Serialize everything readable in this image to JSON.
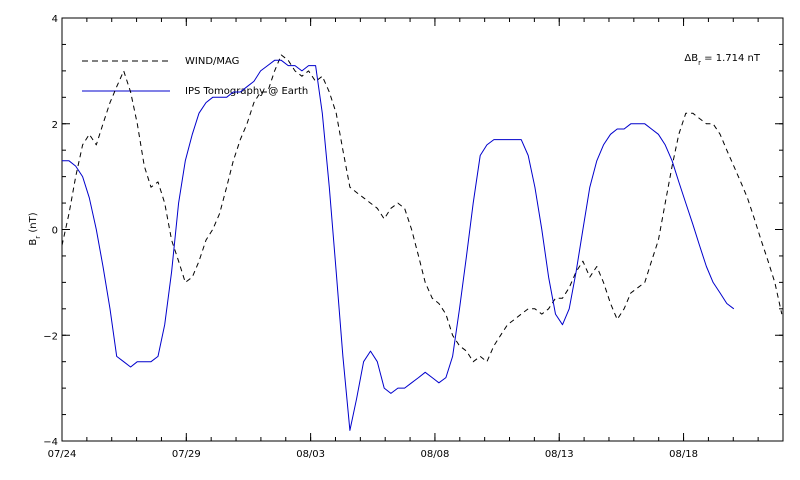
{
  "chart_data": {
    "type": "line",
    "title": "",
    "xlabel": "",
    "ylabel": "Br (nT)",
    "ylabel_main": "B",
    "ylabel_sub": "r",
    "ylabel_unit": " (nT)",
    "xlim": [
      0,
      29
    ],
    "ylim": [
      -4,
      4
    ],
    "x_ticks": [
      {
        "value": 0,
        "label": "07/24"
      },
      {
        "value": 5,
        "label": "07/29"
      },
      {
        "value": 10,
        "label": "08/03"
      },
      {
        "value": 15,
        "label": "08/08"
      },
      {
        "value": 20,
        "label": "08/13"
      },
      {
        "value": 25,
        "label": "08/18"
      }
    ],
    "y_ticks": [
      {
        "value": -4,
        "label": "−4"
      },
      {
        "value": -2,
        "label": "−2"
      },
      {
        "value": 0,
        "label": "0"
      },
      {
        "value": 2,
        "label": "2"
      },
      {
        "value": 4,
        "label": "4"
      }
    ],
    "annotation": "ΔBr = 1.714 nT",
    "annotation_parts": {
      "delta": "ΔB",
      "sub": "r",
      "rest": " = 1.714 nT"
    },
    "legend_position": "top-left",
    "grid": false,
    "series": [
      {
        "name": "WIND/MAG",
        "style": "dashed",
        "color": "#000000",
        "x": [
          0.0,
          0.28,
          0.55,
          0.83,
          1.1,
          1.38,
          1.65,
          1.93,
          2.2,
          2.48,
          2.76,
          3.03,
          3.31,
          3.58,
          3.86,
          4.13,
          4.41,
          4.69,
          4.96,
          5.24,
          5.51,
          5.79,
          6.06,
          6.34,
          6.62,
          6.89,
          7.17,
          7.44,
          7.72,
          7.99,
          8.27,
          8.55,
          8.82,
          9.1,
          9.37,
          9.65,
          9.92,
          10.2,
          10.47,
          10.75,
          11.03,
          11.3,
          11.58,
          11.85,
          12.13,
          12.41,
          12.68,
          12.96,
          13.23,
          13.51,
          13.78,
          14.06,
          14.34,
          14.61,
          14.89,
          15.16,
          15.44,
          15.71,
          15.99,
          16.27,
          16.54,
          16.82,
          17.09,
          17.37,
          17.64,
          17.92,
          18.2,
          18.47,
          18.75,
          19.02,
          19.3,
          19.57,
          19.85,
          20.13,
          20.4,
          20.68,
          20.95,
          21.23,
          21.51,
          21.78,
          22.06,
          22.33,
          22.61,
          22.88,
          23.16,
          23.44,
          23.71,
          23.99,
          24.26,
          24.54,
          24.81,
          25.09,
          25.37,
          25.64,
          25.92,
          26.19,
          26.47,
          26.74,
          27.02,
          27.3,
          27.57,
          27.85,
          28.12,
          28.4,
          28.67,
          28.95
        ],
        "values": [
          -0.3,
          0.3,
          1.0,
          1.6,
          1.8,
          1.6,
          2.0,
          2.4,
          2.7,
          3.0,
          2.6,
          2.0,
          1.2,
          0.8,
          0.9,
          0.5,
          -0.2,
          -0.6,
          -1.0,
          -0.9,
          -0.6,
          -0.2,
          0.0,
          0.3,
          0.8,
          1.3,
          1.7,
          2.0,
          2.4,
          2.6,
          2.6,
          3.0,
          3.3,
          3.2,
          3.0,
          2.9,
          3.0,
          2.8,
          2.9,
          2.6,
          2.2,
          1.5,
          0.8,
          0.7,
          0.6,
          0.5,
          0.4,
          0.2,
          0.4,
          0.5,
          0.4,
          0.0,
          -0.5,
          -1.0,
          -1.3,
          -1.4,
          -1.6,
          -2.0,
          -2.2,
          -2.3,
          -2.5,
          -2.4,
          -2.5,
          -2.2,
          -2.0,
          -1.8,
          -1.7,
          -1.6,
          -1.5,
          -1.5,
          -1.6,
          -1.5,
          -1.3,
          -1.3,
          -1.1,
          -0.8,
          -0.6,
          -0.9,
          -0.7,
          -1.0,
          -1.4,
          -1.7,
          -1.5,
          -1.2,
          -1.1,
          -1.0,
          -0.6,
          -0.2,
          0.5,
          1.2,
          1.8,
          2.2,
          2.2,
          2.1,
          2.0,
          2.0,
          1.8,
          1.5,
          1.2,
          0.9,
          0.6,
          0.2,
          -0.2,
          -0.6,
          -1.0,
          -1.6
        ]
      },
      {
        "name": "IPS Tomography @ Earth",
        "style": "solid",
        "color": "#0000cc",
        "x": [
          0.0,
          0.28,
          0.55,
          0.83,
          1.1,
          1.38,
          1.65,
          1.93,
          2.2,
          2.48,
          2.76,
          3.03,
          3.31,
          3.58,
          3.86,
          4.13,
          4.41,
          4.69,
          4.96,
          5.24,
          5.51,
          5.79,
          6.06,
          6.34,
          6.62,
          6.89,
          7.17,
          7.44,
          7.72,
          7.99,
          8.27,
          8.55,
          8.82,
          9.1,
          9.37,
          9.65,
          9.92,
          10.2,
          10.47,
          10.75,
          11.03,
          11.3,
          11.58,
          11.85,
          12.13,
          12.41,
          12.68,
          12.96,
          13.23,
          13.51,
          13.78,
          14.06,
          14.34,
          14.61,
          14.89,
          15.16,
          15.44,
          15.71,
          15.99,
          16.27,
          16.54,
          16.82,
          17.09,
          17.37,
          17.64,
          17.92,
          18.2,
          18.47,
          18.75,
          19.02,
          19.3,
          19.57,
          19.85,
          20.13,
          20.4,
          20.68,
          20.95,
          21.23,
          21.51,
          21.78,
          22.06,
          22.33,
          22.61,
          22.88,
          23.16,
          23.44,
          23.71,
          23.99,
          24.26,
          24.54,
          24.81,
          25.09,
          25.37,
          25.64,
          25.92,
          26.19,
          26.47,
          26.74,
          27.02
        ],
        "values": [
          1.3,
          1.3,
          1.2,
          1.0,
          0.6,
          0.0,
          -0.7,
          -1.5,
          -2.4,
          -2.5,
          -2.6,
          -2.5,
          -2.5,
          -2.5,
          -2.4,
          -1.8,
          -0.8,
          0.5,
          1.3,
          1.8,
          2.2,
          2.4,
          2.5,
          2.5,
          2.5,
          2.6,
          2.6,
          2.7,
          2.8,
          3.0,
          3.1,
          3.2,
          3.2,
          3.1,
          3.1,
          3.0,
          3.1,
          3.1,
          2.2,
          0.8,
          -0.8,
          -2.4,
          -3.8,
          -3.2,
          -2.5,
          -2.3,
          -2.5,
          -3.0,
          -3.1,
          -3.0,
          -3.0,
          -2.9,
          -2.8,
          -2.7,
          -2.8,
          -2.9,
          -2.8,
          -2.4,
          -1.5,
          -0.5,
          0.5,
          1.4,
          1.6,
          1.7,
          1.7,
          1.7,
          1.7,
          1.7,
          1.4,
          0.8,
          0.0,
          -0.9,
          -1.6,
          -1.8,
          -1.5,
          -0.8,
          0.0,
          0.8,
          1.3,
          1.6,
          1.8,
          1.9,
          1.9,
          2.0,
          2.0,
          2.0,
          1.9,
          1.8,
          1.6,
          1.3,
          0.9,
          0.5,
          0.1,
          -0.3,
          -0.7,
          -1.0,
          -1.2,
          -1.4,
          -1.5
        ]
      }
    ]
  }
}
